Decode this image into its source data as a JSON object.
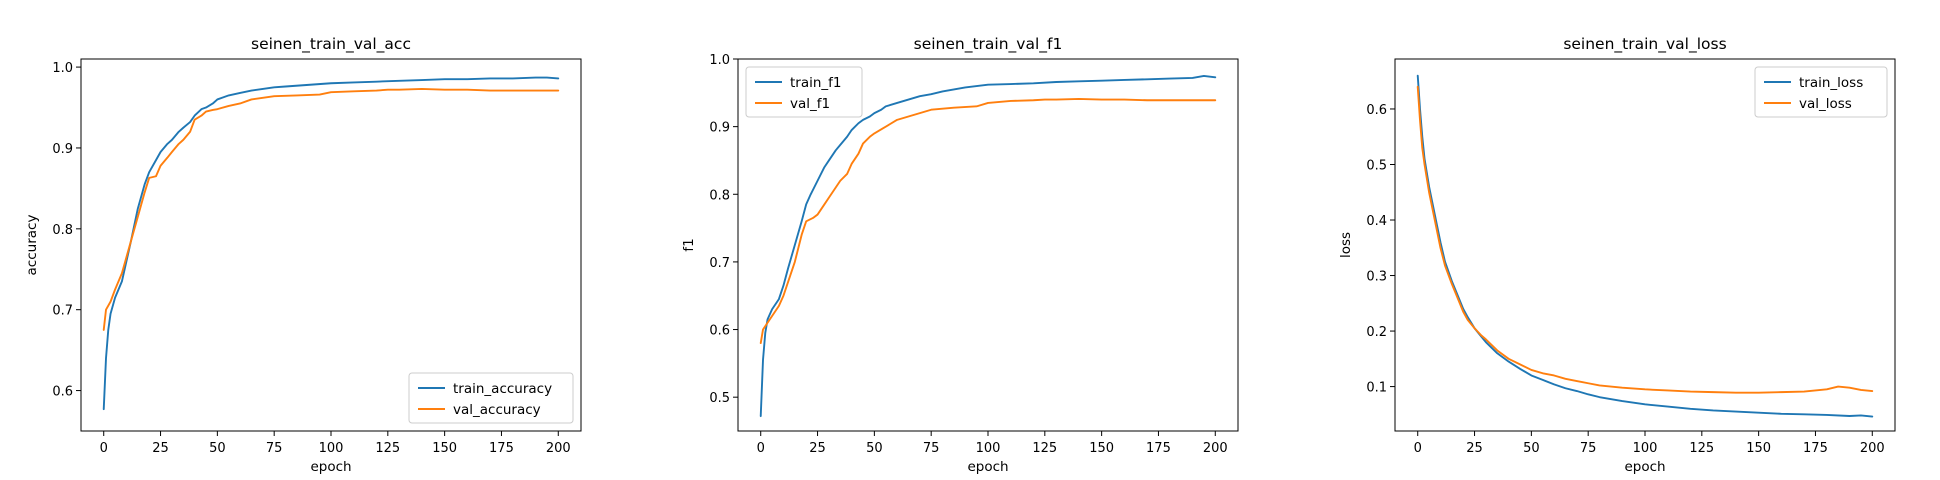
{
  "chart_data": [
    {
      "type": "line",
      "title": "seinen_train_val_acc",
      "xlabel": "epoch",
      "ylabel": "accuracy",
      "xlim": [
        -10,
        210
      ],
      "ylim": [
        0.55,
        1.01
      ],
      "xticks": [
        0,
        25,
        50,
        75,
        100,
        125,
        150,
        175,
        200
      ],
      "yticks": [
        0.6,
        0.7,
        0.8,
        0.9,
        1.0
      ],
      "ytick_labels": [
        "0.6",
        "0.7",
        "0.8",
        "0.9",
        "1.0"
      ],
      "legend": "lower-right",
      "series": [
        {
          "name": "train_accuracy",
          "color": "#1f77b4",
          "x": [
            0,
            1,
            2,
            3,
            5,
            8,
            10,
            12,
            15,
            18,
            20,
            22,
            25,
            28,
            30,
            33,
            35,
            38,
            40,
            43,
            45,
            48,
            50,
            53,
            55,
            60,
            65,
            70,
            75,
            80,
            90,
            100,
            110,
            120,
            130,
            140,
            150,
            160,
            170,
            180,
            190,
            195,
            200
          ],
          "y": [
            0.577,
            0.64,
            0.675,
            0.695,
            0.715,
            0.735,
            0.76,
            0.785,
            0.825,
            0.855,
            0.87,
            0.88,
            0.895,
            0.905,
            0.91,
            0.92,
            0.925,
            0.932,
            0.94,
            0.948,
            0.95,
            0.955,
            0.96,
            0.963,
            0.965,
            0.968,
            0.971,
            0.973,
            0.975,
            0.976,
            0.978,
            0.98,
            0.981,
            0.982,
            0.983,
            0.984,
            0.985,
            0.985,
            0.986,
            0.986,
            0.987,
            0.987,
            0.986
          ]
        },
        {
          "name": "val_accuracy",
          "color": "#ff7f0e",
          "x": [
            0,
            1,
            3,
            5,
            8,
            10,
            13,
            15,
            18,
            20,
            23,
            25,
            28,
            30,
            33,
            35,
            38,
            40,
            43,
            45,
            48,
            50,
            55,
            60,
            65,
            70,
            75,
            85,
            95,
            100,
            110,
            120,
            125,
            130,
            140,
            150,
            160,
            170,
            180,
            190,
            200
          ],
          "y": [
            0.675,
            0.7,
            0.71,
            0.725,
            0.745,
            0.765,
            0.795,
            0.815,
            0.845,
            0.863,
            0.865,
            0.878,
            0.888,
            0.895,
            0.905,
            0.91,
            0.92,
            0.935,
            0.94,
            0.945,
            0.947,
            0.948,
            0.952,
            0.955,
            0.96,
            0.962,
            0.964,
            0.965,
            0.966,
            0.969,
            0.97,
            0.971,
            0.972,
            0.972,
            0.973,
            0.972,
            0.972,
            0.971,
            0.971,
            0.971,
            0.971
          ]
        }
      ]
    },
    {
      "type": "line",
      "title": "seinen_train_val_f1",
      "xlabel": "epoch",
      "ylabel": "f1",
      "xlim": [
        -10,
        210
      ],
      "ylim": [
        0.45,
        1.0
      ],
      "xticks": [
        0,
        25,
        50,
        75,
        100,
        125,
        150,
        175,
        200
      ],
      "yticks": [
        0.5,
        0.6,
        0.7,
        0.8,
        0.9,
        1.0
      ],
      "ytick_labels": [
        "0.5",
        "0.6",
        "0.7",
        "0.8",
        "0.9",
        "1.0"
      ],
      "legend": "upper-left",
      "series": [
        {
          "name": "train_f1",
          "color": "#1f77b4",
          "x": [
            0,
            1,
            2,
            3,
            5,
            8,
            10,
            12,
            15,
            18,
            20,
            22,
            25,
            28,
            30,
            33,
            35,
            38,
            40,
            43,
            45,
            48,
            50,
            53,
            55,
            60,
            65,
            70,
            75,
            80,
            90,
            100,
            110,
            120,
            130,
            140,
            150,
            160,
            170,
            180,
            190,
            195,
            200
          ],
          "y": [
            0.472,
            0.555,
            0.595,
            0.615,
            0.63,
            0.645,
            0.665,
            0.69,
            0.725,
            0.76,
            0.785,
            0.8,
            0.82,
            0.84,
            0.85,
            0.865,
            0.873,
            0.885,
            0.895,
            0.905,
            0.91,
            0.915,
            0.92,
            0.925,
            0.93,
            0.935,
            0.94,
            0.945,
            0.948,
            0.952,
            0.958,
            0.962,
            0.963,
            0.964,
            0.966,
            0.967,
            0.968,
            0.969,
            0.97,
            0.971,
            0.972,
            0.975,
            0.973
          ]
        },
        {
          "name": "val_f1",
          "color": "#ff7f0e",
          "x": [
            0,
            1,
            3,
            5,
            8,
            10,
            13,
            15,
            18,
            20,
            23,
            25,
            28,
            30,
            33,
            35,
            38,
            40,
            43,
            45,
            48,
            50,
            55,
            60,
            65,
            70,
            75,
            85,
            95,
            100,
            110,
            120,
            125,
            130,
            140,
            150,
            160,
            170,
            180,
            190,
            200
          ],
          "y": [
            0.58,
            0.6,
            0.61,
            0.62,
            0.635,
            0.65,
            0.68,
            0.7,
            0.74,
            0.76,
            0.765,
            0.77,
            0.785,
            0.795,
            0.81,
            0.82,
            0.83,
            0.845,
            0.86,
            0.875,
            0.885,
            0.89,
            0.9,
            0.91,
            0.915,
            0.92,
            0.925,
            0.928,
            0.93,
            0.935,
            0.938,
            0.939,
            0.94,
            0.94,
            0.941,
            0.94,
            0.94,
            0.939,
            0.939,
            0.939,
            0.939
          ]
        }
      ]
    },
    {
      "type": "line",
      "title": "seinen_train_val_loss",
      "xlabel": "epoch",
      "ylabel": "loss",
      "xlim": [
        -10,
        210
      ],
      "ylim": [
        0.02,
        0.69
      ],
      "xticks": [
        0,
        25,
        50,
        75,
        100,
        125,
        150,
        175,
        200
      ],
      "yticks": [
        0.1,
        0.2,
        0.3,
        0.4,
        0.5,
        0.6
      ],
      "ytick_labels": [
        "0.1",
        "0.2",
        "0.3",
        "0.4",
        "0.5",
        "0.6"
      ],
      "legend": "upper-right",
      "series": [
        {
          "name": "train_loss",
          "color": "#1f77b4",
          "x": [
            0,
            1,
            2,
            3,
            5,
            8,
            10,
            12,
            15,
            18,
            20,
            22,
            25,
            28,
            30,
            35,
            40,
            45,
            50,
            55,
            60,
            65,
            70,
            75,
            80,
            90,
            100,
            110,
            120,
            130,
            140,
            150,
            160,
            170,
            180,
            190,
            195,
            200
          ],
          "y": [
            0.66,
            0.6,
            0.55,
            0.51,
            0.46,
            0.4,
            0.36,
            0.325,
            0.29,
            0.26,
            0.24,
            0.225,
            0.205,
            0.19,
            0.18,
            0.16,
            0.145,
            0.132,
            0.12,
            0.112,
            0.104,
            0.097,
            0.092,
            0.086,
            0.081,
            0.074,
            0.068,
            0.064,
            0.06,
            0.057,
            0.055,
            0.053,
            0.051,
            0.05,
            0.049,
            0.047,
            0.048,
            0.046
          ]
        },
        {
          "name": "val_loss",
          "color": "#ff7f0e",
          "x": [
            0,
            1,
            2,
            3,
            5,
            8,
            10,
            12,
            15,
            18,
            20,
            22,
            25,
            28,
            30,
            35,
            40,
            45,
            50,
            55,
            60,
            65,
            70,
            75,
            80,
            90,
            100,
            110,
            120,
            130,
            140,
            150,
            160,
            170,
            180,
            185,
            190,
            195,
            200
          ],
          "y": [
            0.64,
            0.58,
            0.53,
            0.5,
            0.45,
            0.39,
            0.35,
            0.318,
            0.285,
            0.255,
            0.235,
            0.22,
            0.205,
            0.192,
            0.185,
            0.165,
            0.15,
            0.14,
            0.13,
            0.124,
            0.12,
            0.114,
            0.11,
            0.106,
            0.102,
            0.098,
            0.095,
            0.093,
            0.091,
            0.09,
            0.089,
            0.089,
            0.09,
            0.091,
            0.095,
            0.1,
            0.098,
            0.094,
            0.092
          ]
        }
      ]
    }
  ]
}
